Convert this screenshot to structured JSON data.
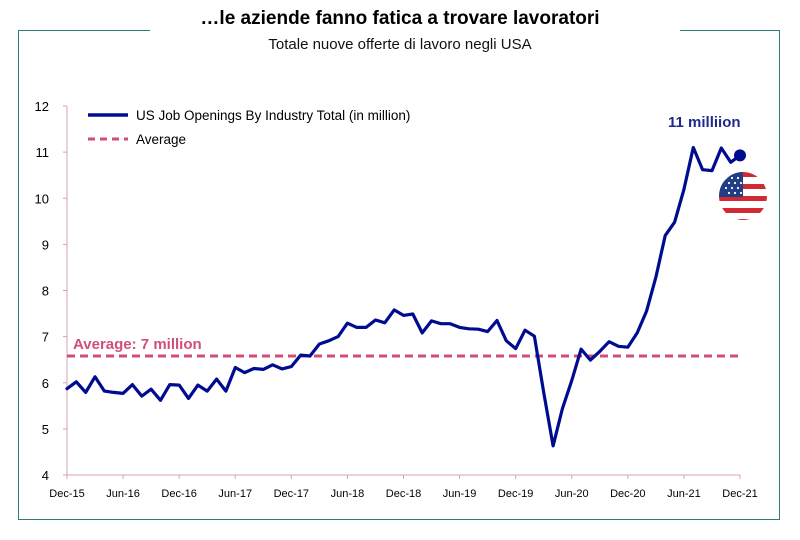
{
  "title": "…le aziende fanno fatica a trovare lavoratori",
  "subtitle": "Totale nuove offerte di lavoro negli USA",
  "legend": {
    "series_label": "US Job Openings By Industry Total (in million)",
    "average_label": "Average"
  },
  "annotations": {
    "average_text": "Average: 7 million",
    "end_text": "11 milliion",
    "flag_icon": "us-flag-icon"
  },
  "colors": {
    "series": "#000c8f",
    "average": "#d24e78",
    "frame": "#2e7d7a",
    "axis": "#d9a0b4"
  },
  "chart_data": {
    "type": "line",
    "title": "…le aziende fanno fatica a trovare lavoratori",
    "subtitle": "Totale nuove offerte di lavoro negli USA",
    "xlabel": "",
    "ylabel": "",
    "ylim": [
      4,
      12
    ],
    "yticks": [
      4,
      5,
      6,
      7,
      8,
      9,
      10,
      11,
      12
    ],
    "xticks": [
      "Dec-15",
      "Jun-16",
      "Dec-16",
      "Jun-17",
      "Dec-17",
      "Jun-18",
      "Dec-18",
      "Jun-19",
      "Dec-19",
      "Jun-20",
      "Dec-20",
      "Jun-21",
      "Dec-21"
    ],
    "legend_position": "top-left",
    "grid": false,
    "series": [
      {
        "name": "US Job Openings By Industry Total (in million)",
        "start": "Dec-15",
        "frequency": "monthly",
        "values": [
          5.87,
          6.02,
          5.79,
          6.13,
          5.82,
          5.79,
          5.77,
          5.96,
          5.71,
          5.86,
          5.62,
          5.96,
          5.95,
          5.66,
          5.95,
          5.82,
          6.08,
          5.82,
          6.33,
          6.22,
          6.31,
          6.29,
          6.39,
          6.3,
          6.35,
          6.6,
          6.58,
          6.84,
          6.91,
          7.0,
          7.29,
          7.2,
          7.2,
          7.36,
          7.3,
          7.58,
          7.46,
          7.49,
          7.08,
          7.34,
          7.28,
          7.28,
          7.2,
          7.17,
          7.16,
          7.11,
          7.35,
          6.91,
          6.74,
          7.14,
          7.01,
          5.79,
          4.63,
          5.44,
          6.05,
          6.73,
          6.49,
          6.68,
          6.89,
          6.79,
          6.77,
          7.08,
          7.55,
          8.29,
          9.19,
          9.48,
          10.19,
          11.1,
          10.62,
          10.6,
          11.09,
          10.78,
          10.93
        ]
      }
    ],
    "average": 6.58
  }
}
